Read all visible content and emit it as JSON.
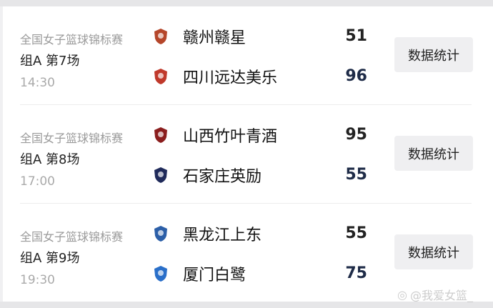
{
  "matches": [
    {
      "competition": "全国女子篮球锦标赛",
      "round": "组A 第7场",
      "time": "14:30",
      "home": {
        "name": "赣州赣星",
        "score": "51",
        "logo_color": "#b5462a"
      },
      "away": {
        "name": "四川远达美乐",
        "score": "96",
        "logo_color": "#c0392b"
      },
      "stats_label": "数据统计"
    },
    {
      "competition": "全国女子篮球锦标赛",
      "round": "组A 第8场",
      "time": "17:00",
      "home": {
        "name": "山西竹叶青酒",
        "score": "95",
        "logo_color": "#8b1e1e"
      },
      "away": {
        "name": "石家庄英励",
        "score": "55",
        "logo_color": "#1f2a5a"
      },
      "stats_label": "数据统计"
    },
    {
      "competition": "全国女子篮球锦标赛",
      "round": "组A 第9场",
      "time": "19:30",
      "home": {
        "name": "黑龙江上东",
        "score": "55",
        "logo_color": "#2c5fa8"
      },
      "away": {
        "name": "厦门白鹭",
        "score": "75",
        "logo_color": "#2a6fc9"
      },
      "stats_label": "数据统计"
    }
  ],
  "watermark": "@我爱女篮_"
}
